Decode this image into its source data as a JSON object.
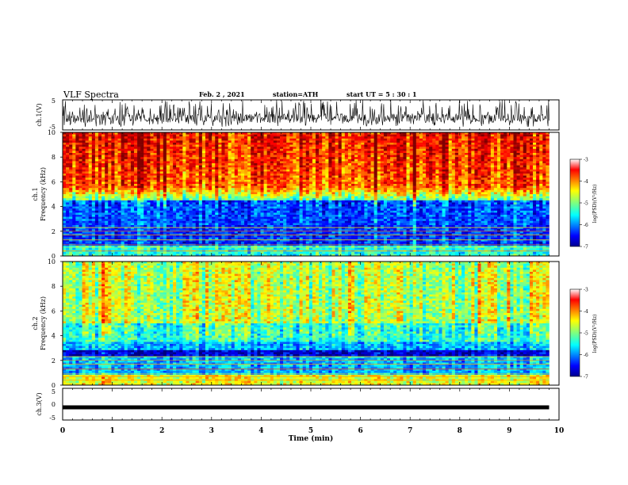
{
  "header": {
    "title": "VLF Spectra",
    "date": "Feb. 2  , 2021",
    "station": "station=ATH",
    "start": "start  UT  =   5  : 30 : 1"
  },
  "chart_data": [
    {
      "type": "line",
      "panel": "ch1-waveform",
      "ylabel": "ch.1(V)",
      "ylim": [
        -5,
        5
      ],
      "yticks": [
        "5",
        "-5"
      ],
      "x_range_min": [
        0,
        9.8
      ],
      "signal": "noisy waveform centered near -1 V with spikes reaching +5 V"
    },
    {
      "type": "heatmap",
      "panel": "ch1-spectrogram",
      "ylabel": "ch.1",
      "ylabel2": "Frequency (kHz)",
      "ylim": [
        0,
        10
      ],
      "yticks": [
        "0",
        "2",
        "4",
        "6",
        "8",
        "10"
      ],
      "x_range_min": [
        0,
        9.8
      ],
      "colorbar": {
        "label": "log(PSD)(V²/Hz)",
        "range": [
          -7,
          -3
        ],
        "ticks": [
          "-3",
          "-4",
          "-5",
          "-6",
          "-7"
        ]
      }
    },
    {
      "type": "heatmap",
      "panel": "ch2-spectrogram",
      "ylabel": "ch.2",
      "ylabel2": "Frequency (kHz)",
      "ylim": [
        0,
        10
      ],
      "yticks": [
        "0",
        "2",
        "4",
        "6",
        "8",
        "10"
      ],
      "x_range_min": [
        0,
        9.8
      ],
      "colorbar": {
        "label": "log(PSD)(V²/Hz)",
        "range": [
          -7,
          -3
        ],
        "ticks": [
          "-3",
          "-4",
          "-5",
          "-6",
          "-7"
        ]
      }
    },
    {
      "type": "line",
      "panel": "ch3-waveform",
      "ylabel": "ch.3(V)",
      "ylim": [
        -5,
        5
      ],
      "yticks": [
        "5",
        "0",
        "-5"
      ],
      "x_range_min": [
        0,
        9.8
      ],
      "signal": "flat trace near -1 V"
    }
  ],
  "xaxis": {
    "label": "Time  (min)",
    "range": [
      0,
      10
    ],
    "ticks": [
      "0",
      "1",
      "2",
      "3",
      "4",
      "5",
      "6",
      "7",
      "8",
      "9",
      "10"
    ]
  },
  "colors": {
    "jet": [
      "#00008f",
      "#0000ff",
      "#007fff",
      "#00ffff",
      "#7fff7f",
      "#ffff00",
      "#ff7f00",
      "#ff0000",
      "#7f0000"
    ]
  }
}
